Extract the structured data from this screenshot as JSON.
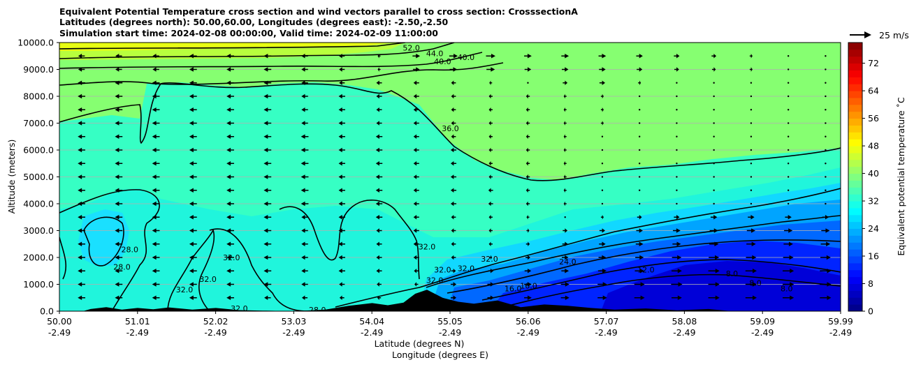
{
  "chart_data": {
    "type": "contourf",
    "title_lines": [
      "Equivalent Potential Temperature cross section and wind vectors parallel to cross section: CrosssectionA",
      "Latitudes (degrees north): 50.00,60.00, Longitudes (degrees east): -2.50,-2.50",
      "Simulation start time: 2024-02-08 00:00:00, Valid time: 2024-02-09 11:00:00"
    ],
    "xlabel": "Latitude (degrees N)",
    "xlabel2": "Longitude (degrees E)",
    "ylabel": "Altitude (meters)",
    "x_ticks": [
      {
        "lat": "50.00",
        "lon": "-2.49"
      },
      {
        "lat": "51.01",
        "lon": "-2.49"
      },
      {
        "lat": "52.02",
        "lon": "-2.49"
      },
      {
        "lat": "53.03",
        "lon": "-2.49"
      },
      {
        "lat": "54.04",
        "lon": "-2.49"
      },
      {
        "lat": "55.05",
        "lon": "-2.49"
      },
      {
        "lat": "56.06",
        "lon": "-2.49"
      },
      {
        "lat": "57.07",
        "lon": "-2.49"
      },
      {
        "lat": "58.08",
        "lon": "-2.49"
      },
      {
        "lat": "59.09",
        "lon": "-2.49"
      },
      {
        "lat": "59.99",
        "lon": "-2.49"
      }
    ],
    "xlim": [
      50.0,
      59.99
    ],
    "ylim": [
      0,
      10000
    ],
    "y_ticks": [
      "0.0",
      "1000.0",
      "2000.0",
      "3000.0",
      "4000.0",
      "5000.0",
      "6000.0",
      "7000.0",
      "8000.0",
      "9000.0",
      "10000.0"
    ],
    "grid": "horizontal",
    "colorbar": {
      "label": "Equivalent potential temperature ˚C",
      "ticks": [
        "0",
        "8",
        "16",
        "24",
        "32",
        "40",
        "48",
        "56",
        "64",
        "72"
      ],
      "vmin": 0,
      "vmax": 78,
      "step": 2
    },
    "quiver_key": "25 m/s",
    "contour_labels": [
      {
        "text": "52.0",
        "lat": 54.5,
        "alt": 9800
      },
      {
        "text": "44.0",
        "lat": 54.8,
        "alt": 9600
      },
      {
        "text": "40.0",
        "lat": 54.9,
        "alt": 9300
      },
      {
        "text": "40.0",
        "lat": 55.2,
        "alt": 9450
      },
      {
        "text": "36.0",
        "lat": 55.0,
        "alt": 6800
      },
      {
        "text": "28.0",
        "lat": 50.8,
        "alt": 1650
      },
      {
        "text": "28.0",
        "lat": 50.9,
        "alt": 2300
      },
      {
        "text": "32.0",
        "lat": 52.2,
        "alt": 2000
      },
      {
        "text": "32.0",
        "lat": 51.9,
        "alt": 1200
      },
      {
        "text": "32.0",
        "lat": 51.6,
        "alt": 800
      },
      {
        "text": "32.0",
        "lat": 52.3,
        "alt": 100
      },
      {
        "text": "28.0",
        "lat": 53.3,
        "alt": 50
      },
      {
        "text": "32.0",
        "lat": 54.7,
        "alt": 2400
      },
      {
        "text": "32.0",
        "lat": 54.9,
        "alt": 1550
      },
      {
        "text": "32.0",
        "lat": 55.2,
        "alt": 1600
      },
      {
        "text": "32.0",
        "lat": 55.5,
        "alt": 1950
      },
      {
        "text": "32.0",
        "lat": 54.8,
        "alt": 1150
      },
      {
        "text": "24.0",
        "lat": 56.5,
        "alt": 1850
      },
      {
        "text": "16.0",
        "lat": 56.0,
        "alt": 950
      },
      {
        "text": "16.0",
        "lat": 55.8,
        "alt": 850
      },
      {
        "text": "12.0",
        "lat": 57.5,
        "alt": 1550
      },
      {
        "text": "8.0",
        "lat": 58.6,
        "alt": 1400
      },
      {
        "text": "8.0",
        "lat": 58.9,
        "alt": 1050
      },
      {
        "text": "8.0",
        "lat": 59.3,
        "alt": 850
      }
    ],
    "wind_vectors": [
      {
        "alt": 9500,
        "u": [
          -7,
          -7,
          -7,
          -8,
          -8,
          -8,
          -7,
          -6,
          -3,
          8,
          9,
          10,
          8,
          8,
          8,
          7,
          6,
          5,
          3,
          2,
          1
        ]
      },
      {
        "alt": 9000,
        "u": [
          -7,
          -7,
          -7,
          -8,
          -8,
          -8,
          -7,
          -6,
          -3,
          7,
          8,
          9,
          7,
          7,
          7,
          6,
          5,
          4,
          3,
          2,
          1
        ]
      },
      {
        "alt": 8500,
        "u": [
          -8,
          -8,
          -8,
          -8,
          -8,
          -8,
          -7,
          -6,
          -6,
          -6,
          -5,
          -3,
          -2,
          5,
          6,
          3,
          2,
          2,
          2,
          1,
          1
        ]
      },
      {
        "alt": 8000,
        "u": [
          -8,
          -8,
          -8,
          -8,
          -8,
          -8,
          -7,
          -7,
          -6,
          -6,
          -5,
          -4,
          -4,
          -3,
          3,
          2,
          2,
          2,
          2,
          1,
          1
        ]
      },
      {
        "alt": 7500,
        "u": [
          -8,
          -8,
          -8,
          -8,
          -8,
          -8,
          -7,
          -7,
          -6,
          -6,
          -5,
          -4,
          -4,
          -3,
          3,
          2,
          2,
          2,
          2,
          1,
          1
        ]
      },
      {
        "alt": 7000,
        "u": [
          -8,
          -8,
          -8,
          -8,
          -8,
          -8,
          -7,
          -7,
          -6,
          -6,
          -5,
          -4,
          -4,
          -3,
          3,
          2,
          2,
          2,
          1,
          1,
          1
        ]
      },
      {
        "alt": 6500,
        "u": [
          -8,
          -8,
          -8,
          -8,
          -8,
          -8,
          -8,
          -7,
          -7,
          -6,
          -5,
          -4,
          -4,
          -3,
          2,
          2,
          2,
          2,
          1,
          1,
          1
        ]
      },
      {
        "alt": 6000,
        "u": [
          -8,
          -8,
          -8,
          -8,
          -8,
          -8,
          -8,
          -7,
          -7,
          -6,
          -6,
          -4,
          -4,
          -3,
          2,
          2,
          2,
          2,
          1,
          1,
          1
        ]
      },
      {
        "alt": 5500,
        "u": [
          -8,
          -8,
          -8,
          -8,
          -8,
          -8,
          -8,
          -7,
          -7,
          -6,
          -6,
          -4,
          -4,
          -3,
          2,
          2,
          2,
          2,
          1,
          1,
          1
        ]
      },
      {
        "alt": 5000,
        "u": [
          -8,
          -8,
          -8,
          -8,
          -8,
          -8,
          -8,
          -7,
          -7,
          -6,
          -6,
          -4,
          -4,
          -3,
          2,
          2,
          2,
          2,
          1,
          1,
          1
        ]
      },
      {
        "alt": 4500,
        "u": [
          -8,
          -8,
          -8,
          -8,
          -8,
          -8,
          -8,
          -7,
          -7,
          -6,
          -6,
          -5,
          -4,
          -3,
          -2,
          -2,
          -1,
          1,
          1,
          1,
          1
        ]
      },
      {
        "alt": 4000,
        "u": [
          -8,
          -8,
          -8,
          -8,
          -8,
          -8,
          -8,
          -7,
          -7,
          -6,
          -6,
          -5,
          -4,
          -3,
          -2,
          -2,
          2,
          2,
          2,
          2,
          2
        ]
      },
      {
        "alt": 3500,
        "u": [
          -8,
          -8,
          -8,
          -8,
          -8,
          -8,
          -7,
          -7,
          -7,
          -6,
          -5,
          -4,
          -3,
          2,
          3,
          5,
          6,
          7,
          7,
          7,
          7
        ]
      },
      {
        "alt": 3000,
        "u": [
          -8,
          -8,
          -8,
          -8,
          -8,
          -8,
          -7,
          -7,
          -6,
          -6,
          -5,
          -4,
          3,
          5,
          6,
          7,
          8,
          9,
          9,
          9,
          9
        ]
      },
      {
        "alt": 2500,
        "u": [
          -8,
          -8,
          -8,
          -8,
          -8,
          -8,
          -7,
          -7,
          -6,
          -6,
          -5,
          -4,
          4,
          6,
          7,
          8,
          9,
          10,
          10,
          10,
          10
        ]
      },
      {
        "alt": 2000,
        "u": [
          -8,
          -8,
          -8,
          -8,
          -8,
          -8,
          -7,
          -7,
          -6,
          -6,
          -5,
          3,
          5,
          7,
          8,
          9,
          10,
          11,
          11,
          11,
          11
        ]
      },
      {
        "alt": 1500,
        "u": [
          -8,
          -8,
          -8,
          -8,
          -8,
          -8,
          -7,
          -7,
          -6,
          -5,
          5,
          6,
          7,
          8,
          9,
          10,
          11,
          12,
          12,
          12,
          12
        ]
      },
      {
        "alt": 1000,
        "u": [
          -8,
          -8,
          -8,
          -8,
          -8,
          -8,
          -7,
          -6,
          -5,
          -4,
          6,
          7,
          8,
          9,
          10,
          11,
          12,
          12,
          12,
          12,
          12
        ]
      },
      {
        "alt": 500,
        "u": [
          -8,
          -8,
          -8,
          -8,
          -8,
          -7,
          -6,
          -5,
          -4,
          -3,
          6,
          7,
          8,
          9,
          10,
          11,
          11,
          12,
          12,
          12,
          12
        ]
      }
    ],
    "wind_vector_x_count": 21,
    "terrain": [
      {
        "lat": 50.0,
        "alt": 0
      },
      {
        "lat": 50.3,
        "alt": 0
      },
      {
        "lat": 50.4,
        "alt": 80
      },
      {
        "lat": 50.6,
        "alt": 150
      },
      {
        "lat": 50.8,
        "alt": 60
      },
      {
        "lat": 51.0,
        "alt": 120
      },
      {
        "lat": 51.2,
        "alt": 70
      },
      {
        "lat": 51.4,
        "alt": 140
      },
      {
        "lat": 51.7,
        "alt": 60
      },
      {
        "lat": 52.0,
        "alt": 120
      },
      {
        "lat": 52.3,
        "alt": 40
      },
      {
        "lat": 52.6,
        "alt": 20
      },
      {
        "lat": 53.0,
        "alt": 0
      },
      {
        "lat": 53.4,
        "alt": 60
      },
      {
        "lat": 53.7,
        "alt": 200
      },
      {
        "lat": 54.0,
        "alt": 300
      },
      {
        "lat": 54.2,
        "alt": 220
      },
      {
        "lat": 54.4,
        "alt": 320
      },
      {
        "lat": 54.55,
        "alt": 650
      },
      {
        "lat": 54.7,
        "alt": 800
      },
      {
        "lat": 54.9,
        "alt": 500
      },
      {
        "lat": 55.1,
        "alt": 350
      },
      {
        "lat": 55.3,
        "alt": 280
      },
      {
        "lat": 55.6,
        "alt": 400
      },
      {
        "lat": 55.9,
        "alt": 150
      },
      {
        "lat": 56.2,
        "alt": 250
      },
      {
        "lat": 56.5,
        "alt": 200
      },
      {
        "lat": 56.8,
        "alt": 120
      },
      {
        "lat": 57.1,
        "alt": 60
      },
      {
        "lat": 57.5,
        "alt": 100
      },
      {
        "lat": 57.9,
        "alt": 30
      },
      {
        "lat": 58.3,
        "alt": 80
      },
      {
        "lat": 58.6,
        "alt": 0
      },
      {
        "lat": 59.99,
        "alt": 0
      }
    ]
  }
}
